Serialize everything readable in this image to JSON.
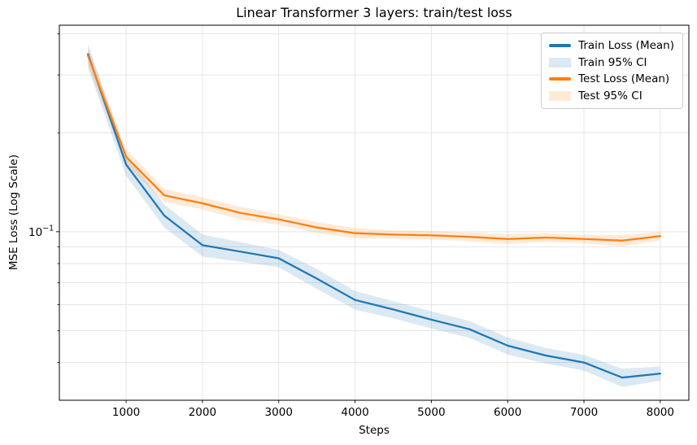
{
  "colors": {
    "background": "#ffffff",
    "spine": "#000000",
    "grid": "#e5e5e5",
    "text": "#000000",
    "train_line": "#1f77b4",
    "test_line": "#ff7f0e",
    "train_ci_legend": "#dbe9f3",
    "test_ci_legend": "#ffead8",
    "legend_border": "#cccccc"
  },
  "chart_data": {
    "type": "line",
    "title": "Linear Transformer 3 layers: train/test loss",
    "xlabel": "Steps",
    "ylabel": "MSE Loss (Log Scale)",
    "yscale": "log",
    "xlim": [
      125,
      8375
    ],
    "ylim": [
      0.0307,
      0.425
    ],
    "grid": "both-major-and-minor, light gray",
    "legend_position": "upper right",
    "x": [
      500,
      1000,
      1500,
      2000,
      2500,
      3000,
      3500,
      4000,
      4500,
      5000,
      5500,
      6000,
      6500,
      7000,
      7500,
      8000
    ],
    "series": [
      {
        "name": "Train Loss (Mean)",
        "color": "#1f77b4",
        "values": [
          0.347,
          0.16,
          0.112,
          0.091,
          0.087,
          0.083,
          0.072,
          0.062,
          0.058,
          0.054,
          0.0505,
          0.045,
          0.042,
          0.04,
          0.036,
          0.037
        ],
        "ci_name": "Train 95% CI",
        "ci_lower": [
          0.315,
          0.148,
          0.103,
          0.084,
          0.081,
          0.078,
          0.067,
          0.058,
          0.0545,
          0.0508,
          0.0475,
          0.0423,
          0.0397,
          0.0378,
          0.0337,
          0.0352
        ],
        "ci_upper": [
          0.372,
          0.172,
          0.121,
          0.098,
          0.093,
          0.088,
          0.077,
          0.066,
          0.0615,
          0.0572,
          0.0535,
          0.0477,
          0.0443,
          0.0422,
          0.0383,
          0.0389
        ],
        "ci_fill_color": "#1f77b4",
        "ci_fill_opacity": 0.16,
        "ci_legend_color": "#dbe9f3"
      },
      {
        "name": "Test Loss (Mean)",
        "color": "#ff7f0e",
        "values": [
          0.343,
          0.169,
          0.129,
          0.122,
          0.114,
          0.109,
          0.103,
          0.099,
          0.098,
          0.0975,
          0.0965,
          0.095,
          0.096,
          0.095,
          0.094,
          0.097
        ],
        "ci_name": "Test 95% CI",
        "ci_lower": [
          0.32,
          0.16,
          0.123,
          0.117,
          0.109,
          0.105,
          0.099,
          0.0955,
          0.095,
          0.0946,
          0.0936,
          0.0917,
          0.0931,
          0.0922,
          0.0902,
          0.0941
        ],
        "ci_upper": [
          0.365,
          0.178,
          0.135,
          0.127,
          0.119,
          0.113,
          0.107,
          0.1025,
          0.101,
          0.1005,
          0.0994,
          0.0983,
          0.0989,
          0.0979,
          0.0978,
          0.0999
        ],
        "ci_fill_color": "#ff7f0e",
        "ci_fill_opacity": 0.16,
        "ci_legend_color": "#ffead8"
      }
    ],
    "xticks": {
      "values": [
        1000,
        2000,
        3000,
        4000,
        5000,
        6000,
        7000,
        8000
      ],
      "labels": [
        "1000",
        "2000",
        "3000",
        "4000",
        "5000",
        "6000",
        "7000",
        "8000"
      ]
    },
    "yticks": {
      "major": [
        {
          "value": 0.1,
          "label": "10⁻¹",
          "base": "10",
          "exponent": "−1"
        }
      ],
      "minor_values": [
        0.4,
        0.3,
        0.2,
        0.09,
        0.08,
        0.07,
        0.06,
        0.05,
        0.04
      ]
    }
  }
}
